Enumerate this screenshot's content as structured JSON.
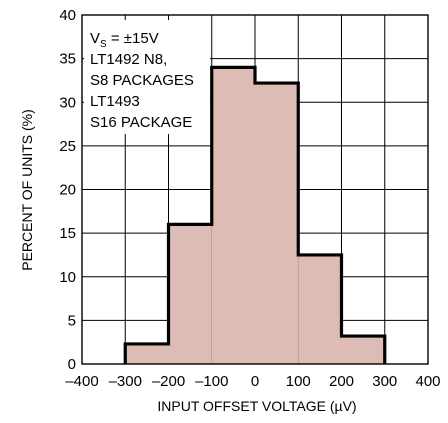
{
  "chart_data": {
    "type": "bar",
    "subtype": "histogram",
    "title": "",
    "xlabel": "INPUT OFFSET VOLTAGE (µV)",
    "ylabel": "PERCENT OF UNITS (%)",
    "xlim": [
      -400,
      400
    ],
    "ylim": [
      0,
      40
    ],
    "xticks": [
      -400,
      -300,
      -200,
      -100,
      0,
      100,
      200,
      300,
      400
    ],
    "xtick_labels": [
      "–400",
      "–300",
      "–200",
      "–100",
      "0",
      "100",
      "200",
      "300",
      "400"
    ],
    "yticks": [
      0,
      5,
      10,
      15,
      20,
      25,
      30,
      35,
      40
    ],
    "ytick_labels": [
      "0",
      "5",
      "10",
      "15",
      "20",
      "25",
      "30",
      "35",
      "40"
    ],
    "grid": true,
    "bins": [
      {
        "x0": -300,
        "x1": -200,
        "value": 2.3
      },
      {
        "x0": -200,
        "x1": -100,
        "value": 16
      },
      {
        "x0": -100,
        "x1": 0,
        "value": 34
      },
      {
        "x0": 0,
        "x1": 100,
        "value": 32.2
      },
      {
        "x0": 100,
        "x1": 200,
        "value": 12.5
      },
      {
        "x0": 200,
        "x1": 300,
        "value": 3.2
      }
    ],
    "colors": {
      "fill": "#dcbcb5",
      "outline": "#000000",
      "grid": "#000000"
    },
    "annotation": {
      "vs_prefix": "V",
      "vs_sub": "S",
      "vs_value": " = ±15V",
      "lines": [
        "LT1492 N8,",
        "S8 PACKAGES",
        "LT1493",
        "S16 PACKAGE"
      ]
    }
  }
}
